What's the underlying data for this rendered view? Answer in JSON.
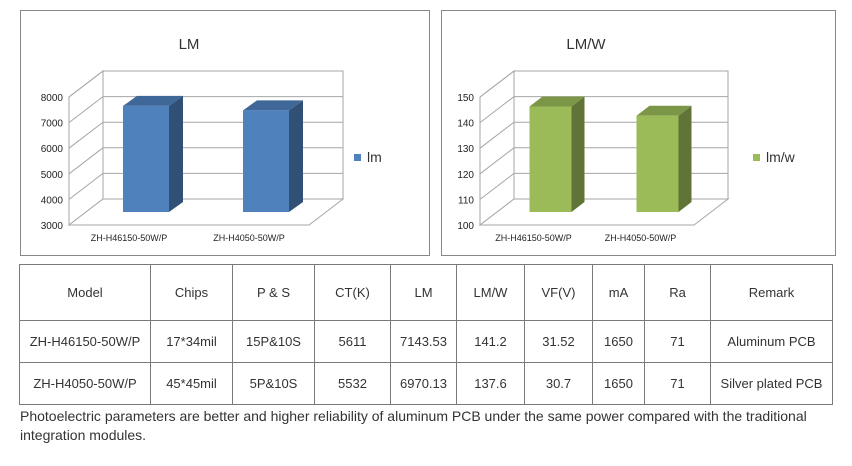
{
  "chart_data": [
    {
      "type": "bar",
      "title": "LM",
      "categories": [
        "ZH-H46150-50W/P",
        "ZH-H4050-50W/P"
      ],
      "series": [
        {
          "name": "lm",
          "values": [
            7143.53,
            6970.13
          ]
        }
      ],
      "ylim": [
        3000,
        8000
      ],
      "yticks": [
        3000,
        4000,
        5000,
        6000,
        7000,
        8000
      ],
      "legend": "right",
      "color": "#4f81bd"
    },
    {
      "type": "bar",
      "title": "LM/W",
      "categories": [
        "ZH-H46150-50W/P",
        "ZH-H4050-50W/P"
      ],
      "series": [
        {
          "name": "lm/w",
          "values": [
            141.2,
            137.6
          ]
        }
      ],
      "ylim": [
        100,
        150
      ],
      "yticks": [
        100,
        110,
        120,
        130,
        140,
        150
      ],
      "legend": "right",
      "color": "#9bbb59"
    }
  ],
  "table": {
    "headers": [
      "Model",
      "Chips",
      "P & S",
      "CT(K)",
      "LM",
      "LM/W",
      "VF(V)",
      "mA",
      "Ra",
      "Remark"
    ],
    "rows": [
      [
        "ZH-H46150-50W/P",
        "17*34mil",
        "15P&10S",
        "5611",
        "7143.53",
        "141.2",
        "31.52",
        "1650",
        "71",
        "Aluminum PCB"
      ],
      [
        "ZH-H4050-50W/P",
        "45*45mil",
        "5P&10S",
        "5532",
        "6970.13",
        "137.6",
        "30.7",
        "1650",
        "71",
        "Silver plated PCB"
      ]
    ]
  },
  "footnote": "Photoelectric parameters are better and higher reliability of aluminum PCB under the same power compared with the traditional integration modules."
}
